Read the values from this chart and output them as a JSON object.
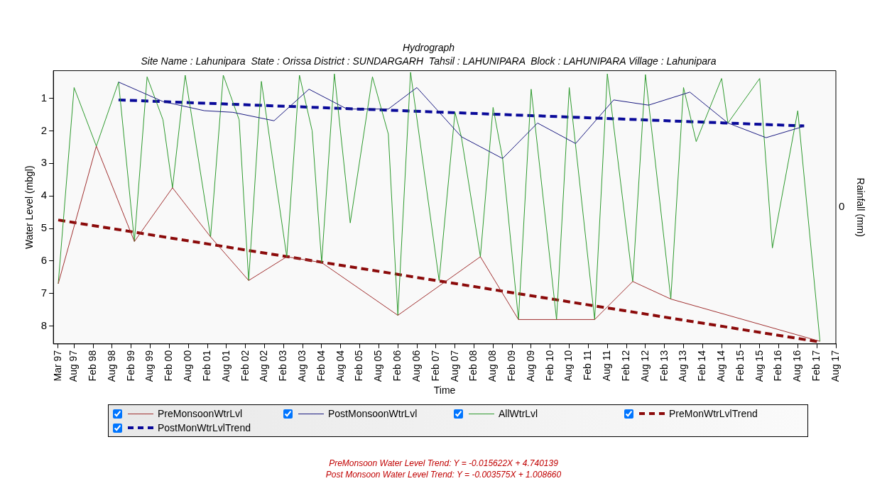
{
  "chart_data": {
    "type": "line",
    "title": "Hydrograph",
    "subtitle": "Site Name : Lahunipara  State : Orissa District : SUNDARGARH  Tahsil : LAHUNIPARA  Block : LAHUNIPARA Village : Lahunipara",
    "xlabel": "Time",
    "ylabel": "Water Level (mbgl)",
    "y2label": "Rainfall (mm)",
    "xlim": [
      "1997-01-15",
      "2017-08"
    ],
    "xticks": [
      {
        "value": "1997-03",
        "label": "Mar 97"
      },
      {
        "value": "1997-08",
        "label": "Aug 97"
      },
      {
        "value": "1998-02",
        "label": "Feb 98"
      },
      {
        "value": "1998-08",
        "label": "Aug 98"
      },
      {
        "value": "1999-02",
        "label": "Feb 99"
      },
      {
        "value": "1999-08",
        "label": "Aug 99"
      },
      {
        "value": "2000-02",
        "label": "Feb 00"
      },
      {
        "value": "2000-08",
        "label": "Aug 00"
      },
      {
        "value": "2001-02",
        "label": "Feb 01"
      },
      {
        "value": "2001-08",
        "label": "Aug 01"
      },
      {
        "value": "2002-02",
        "label": "Feb 02"
      },
      {
        "value": "2002-08",
        "label": "Aug 02"
      },
      {
        "value": "2003-02",
        "label": "Feb 03"
      },
      {
        "value": "2003-08",
        "label": "Aug 03"
      },
      {
        "value": "2004-02",
        "label": "Feb 04"
      },
      {
        "value": "2004-08",
        "label": "Aug 04"
      },
      {
        "value": "2005-02",
        "label": "Feb 05"
      },
      {
        "value": "2005-08",
        "label": "Aug 05"
      },
      {
        "value": "2006-02",
        "label": "Feb 06"
      },
      {
        "value": "2006-08",
        "label": "Aug 06"
      },
      {
        "value": "2007-02",
        "label": "Feb 07"
      },
      {
        "value": "2007-08",
        "label": "Aug 07"
      },
      {
        "value": "2008-02",
        "label": "Feb 08"
      },
      {
        "value": "2008-08",
        "label": "Aug 08"
      },
      {
        "value": "2009-02",
        "label": "Feb 09"
      },
      {
        "value": "2009-08",
        "label": "Aug 09"
      },
      {
        "value": "2010-02",
        "label": "Feb 10"
      },
      {
        "value": "2010-08",
        "label": "Aug 10"
      },
      {
        "value": "2011-02",
        "label": "Feb 11"
      },
      {
        "value": "2011-08",
        "label": "Aug 11"
      },
      {
        "value": "2012-02",
        "label": "Feb 12"
      },
      {
        "value": "2012-08",
        "label": "Aug 12"
      },
      {
        "value": "2013-02",
        "label": "Feb 13"
      },
      {
        "value": "2013-08",
        "label": "Aug 13"
      },
      {
        "value": "2014-02",
        "label": "Feb 14"
      },
      {
        "value": "2014-08",
        "label": "Aug 14"
      },
      {
        "value": "2015-02",
        "label": "Feb 15"
      },
      {
        "value": "2015-08",
        "label": "Aug 15"
      },
      {
        "value": "2016-02",
        "label": "Feb 16"
      },
      {
        "value": "2016-08",
        "label": "Aug 16"
      },
      {
        "value": "2017-02",
        "label": "Feb 17"
      },
      {
        "value": "2017-08",
        "label": "Aug 17"
      }
    ],
    "ylim": [
      8.55,
      0.15
    ],
    "yticks": [
      1,
      2,
      3,
      4,
      5,
      6,
      7,
      8
    ],
    "grid": false,
    "legend": "bottom",
    "marker": "none",
    "series": [
      {
        "name": "PreMonsoonWtrLvl",
        "color": "#a03030",
        "line_style": "solid",
        "x": [
          "1997-03",
          "1998-03",
          "1999-03",
          "2000-03",
          "2001-03",
          "2002-03",
          "2003-03",
          "2004-02",
          "2006-02",
          "2008-04",
          "2009-04",
          "2010-04",
          "2011-04",
          "2012-04",
          "2013-04",
          "2017-03"
        ],
        "values": [
          6.7,
          2.47,
          5.4,
          3.75,
          5.26,
          6.6,
          5.87,
          6.05,
          7.67,
          5.87,
          7.8,
          7.8,
          7.8,
          6.63,
          7.17,
          8.47
        ]
      },
      {
        "name": "PostMonsoonWtrLvl",
        "color": "#1a1a80",
        "line_style": "solid",
        "x": [
          "1998-10",
          "1999-12",
          "2001-01",
          "2001-10",
          "2002-11",
          "2003-10",
          "2004-10",
          "2005-11",
          "2006-08",
          "2007-10",
          "2008-11",
          "2009-10",
          "2010-10",
          "2011-10",
          "2012-09",
          "2013-10",
          "2014-10",
          "2015-10",
          "2016-10"
        ],
        "values": [
          0.5,
          1.1,
          1.38,
          1.43,
          1.69,
          0.72,
          1.33,
          1.33,
          0.67,
          2.18,
          2.85,
          1.76,
          2.39,
          1.05,
          1.21,
          0.81,
          1.76,
          2.21,
          1.86
        ]
      },
      {
        "name": "AllWtrLvl",
        "color": "#2e9a2e",
        "line_style": "solid",
        "x": [
          "1997-03",
          "1997-08",
          "1998-03",
          "1998-10",
          "1999-03",
          "1999-07",
          "1999-12",
          "2000-03",
          "2000-07",
          "2001-03",
          "2001-07",
          "2001-12",
          "2002-03",
          "2002-07",
          "2003-03",
          "2003-07",
          "2003-11",
          "2004-02",
          "2004-06",
          "2004-11",
          "2005-06",
          "2005-11",
          "2006-02",
          "2006-06",
          "2007-03",
          "2007-08",
          "2007-10",
          "2008-04",
          "2008-08",
          "2008-11",
          "2009-04",
          "2009-08",
          "2010-04",
          "2010-08",
          "2011-04",
          "2011-08",
          "2012-04",
          "2012-08",
          "2013-04",
          "2013-08",
          "2013-12",
          "2014-08",
          "2014-10",
          "2015-08",
          "2015-12",
          "2016-08",
          "2017-03"
        ],
        "values": [
          6.7,
          0.67,
          2.47,
          0.5,
          5.4,
          0.34,
          1.66,
          3.75,
          0.29,
          5.26,
          0.29,
          1.66,
          6.6,
          0.48,
          5.87,
          0.29,
          2.0,
          6.05,
          0.25,
          4.83,
          0.34,
          2.1,
          7.67,
          0.2,
          6.6,
          1.43,
          2.18,
          5.87,
          1.28,
          2.85,
          7.8,
          0.72,
          7.8,
          0.67,
          7.8,
          0.25,
          6.63,
          0.27,
          7.17,
          0.67,
          2.33,
          0.39,
          1.76,
          0.39,
          5.6,
          1.38,
          8.47
        ]
      },
      {
        "name": "PreMonWtrLvlTrend",
        "color": "#8b0a0a",
        "line_style": "dashed",
        "x": [
          "1997-03",
          "2017-03"
        ],
        "values": [
          4.74,
          8.49
        ]
      },
      {
        "name": "PostMonWtrLvlTrend",
        "color": "#0a0a9a",
        "line_style": "dashed",
        "x": [
          "1998-10",
          "2016-10"
        ],
        "values": [
          1.05,
          1.85
        ]
      }
    ],
    "annotations": [
      "0",
      "PreMonsoon Water Level Trend: Y = -0.015622X + 4.740139",
      "Post Monsoon Water Level Trend: Y = -0.003575X + 1.008660"
    ]
  }
}
